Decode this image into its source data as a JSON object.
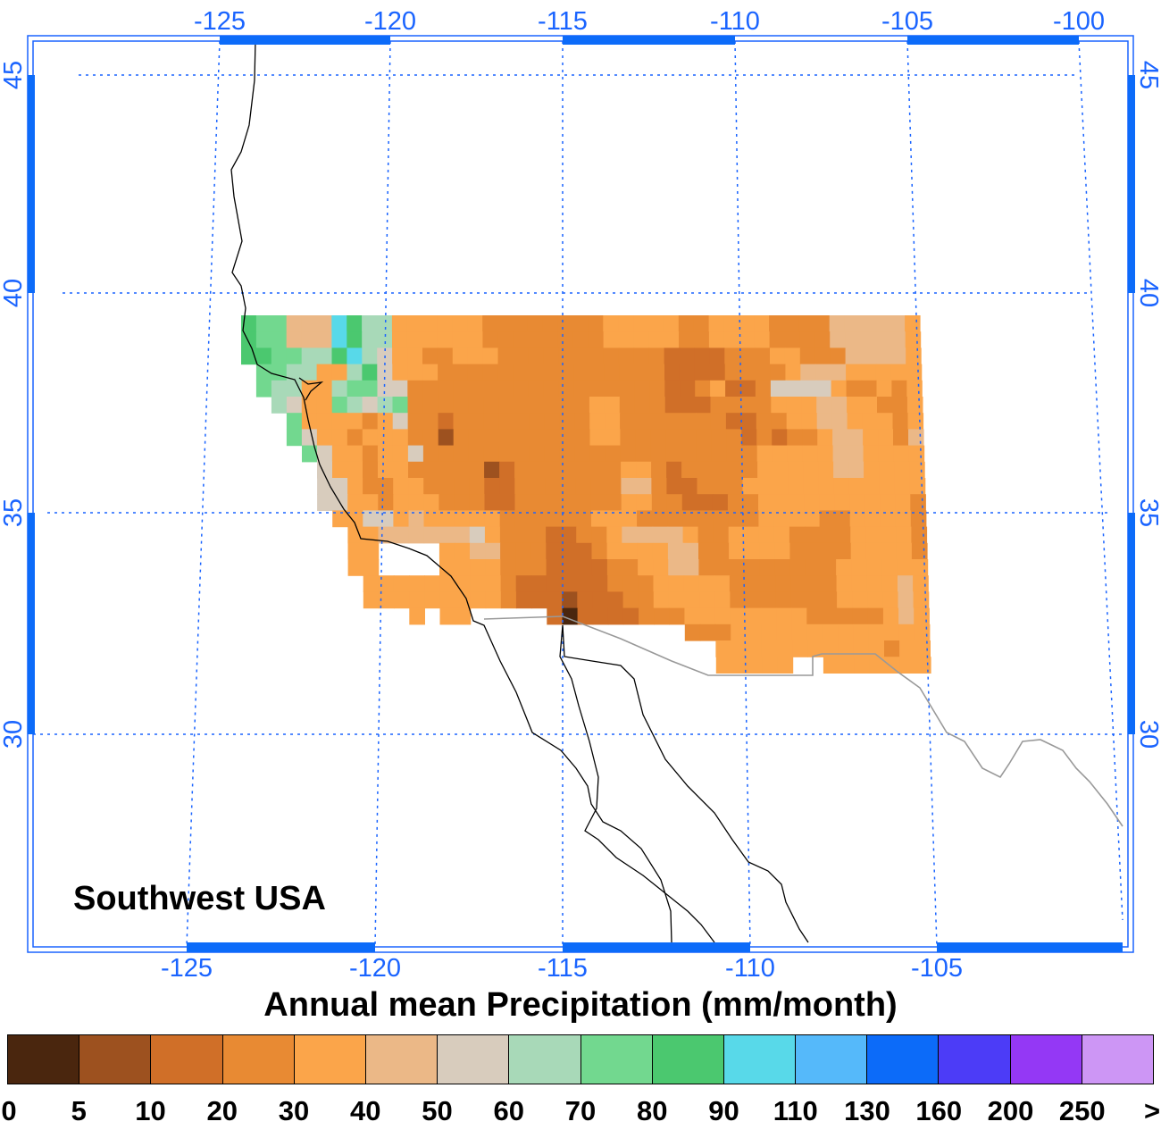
{
  "region_name": "Southwest USA",
  "map_title": "Annual mean Precipitation (mm/month)",
  "grid_color": "#1a64ff",
  "top_lon_labels": [
    "-125",
    "-120",
    "-115",
    "-110",
    "-105",
    "-100"
  ],
  "bottom_lon_labels": [
    "-125",
    "-120",
    "-115",
    "-110",
    "-105"
  ],
  "left_lat_labels": [
    "45",
    "40",
    "35",
    "30"
  ],
  "right_lat_labels": [
    "45",
    "40",
    "35",
    "30"
  ],
  "colorbar": {
    "colors": [
      "#4a260e",
      "#9d511f",
      "#d06f28",
      "#e88a33",
      "#fba54a",
      "#ebb887",
      "#d8ccbd",
      "#a8d9b8",
      "#72d88f",
      "#4bc86f",
      "#58d9e9",
      "#55b9fa",
      "#0c6bf9",
      "#4c3cf7",
      "#9438f5",
      "#cd96f5"
    ],
    "tick_labels": [
      "0",
      "5",
      "10",
      "20",
      "30",
      "40",
      "50",
      "60",
      "70",
      "80",
      "90",
      "110",
      "130",
      "160",
      "200",
      "250",
      ">"
    ]
  },
  "precip_grid": [
    "...........",
    "...........",
    "...........",
    "...........",
    "..........."
  ],
  "cells": [
    [
      "9",
      "8",
      "8",
      "5",
      "5",
      "5",
      "a",
      "9",
      "7",
      "7",
      "4",
      "4",
      "4",
      "4",
      "4",
      "4",
      "3",
      "3",
      "3",
      "3",
      "3",
      "3",
      "3",
      "3",
      "4",
      "4",
      "4",
      "4",
      "4",
      "3",
      "3",
      "4",
      "4",
      "4",
      "4",
      "3",
      "3",
      "3",
      "3",
      "5",
      "5",
      "5",
      "5",
      "5",
      "4"
    ],
    [
      "9",
      "8",
      "8",
      "5",
      "5",
      "5",
      "a",
      "9",
      "7",
      "7",
      "4",
      "4",
      "4",
      "4",
      "4",
      "4",
      "3",
      "3",
      "3",
      "3",
      "3",
      "3",
      "3",
      "3",
      "4",
      "4",
      "4",
      "4",
      "4",
      "3",
      "3",
      "4",
      "4",
      "4",
      "4",
      "3",
      "3",
      "3",
      "3",
      "5",
      "5",
      "5",
      "5",
      "5",
      "4"
    ],
    [
      "9",
      "9",
      "8",
      "8",
      "7",
      "7",
      "9",
      "a",
      "7",
      "6",
      "4",
      "4",
      "3",
      "3",
      "4",
      "4",
      "4",
      "3",
      "3",
      "3",
      "3",
      "3",
      "3",
      "3",
      "3",
      "3",
      "3",
      "3",
      "2",
      "2",
      "2",
      "2",
      "3",
      "3",
      "3",
      "4",
      "4",
      "3",
      "3",
      "3",
      "5",
      "5",
      "5",
      "5",
      "4"
    ],
    [
      "-",
      "8",
      "8",
      "7",
      "7",
      "4",
      "4",
      "7",
      "9",
      "6",
      "4",
      "4",
      "4",
      "3",
      "3",
      "3",
      "3",
      "3",
      "3",
      "3",
      "3",
      "3",
      "3",
      "3",
      "3",
      "3",
      "3",
      "3",
      "2",
      "2",
      "2",
      "2",
      "3",
      "3",
      "3",
      "3",
      "4",
      "5",
      "5",
      "5",
      "4",
      "4",
      "4",
      "4",
      "4"
    ],
    [
      "-",
      "8",
      "7",
      "7",
      "4",
      "4",
      "7",
      "8",
      "8",
      "6",
      "6",
      "3",
      "3",
      "3",
      "3",
      "3",
      "3",
      "3",
      "3",
      "3",
      "3",
      "3",
      "3",
      "3",
      "3",
      "3",
      "3",
      "3",
      "2",
      "2",
      "3",
      "4",
      "2",
      "2",
      "3",
      "6",
      "6",
      "6",
      "6",
      "4",
      "3",
      "3",
      "4",
      "3",
      "4"
    ],
    [
      "-",
      "-",
      "7",
      "6",
      "4",
      "4",
      "8",
      "7",
      "6",
      "7",
      "8",
      "3",
      "3",
      "3",
      "3",
      "3",
      "3",
      "3",
      "3",
      "3",
      "3",
      "3",
      "3",
      "4",
      "4",
      "3",
      "3",
      "3",
      "2",
      "2",
      "2",
      "3",
      "3",
      "3",
      "3",
      "4",
      "4",
      "4",
      "5",
      "5",
      "4",
      "4",
      "3",
      "3",
      "4"
    ],
    [
      "-",
      "-",
      "-",
      "8",
      "4",
      "4",
      "4",
      "4",
      "3",
      "4",
      "6",
      "3",
      "3",
      "2",
      "3",
      "3",
      "3",
      "3",
      "3",
      "3",
      "3",
      "3",
      "3",
      "4",
      "4",
      "3",
      "3",
      "3",
      "3",
      "3",
      "3",
      "3",
      "2",
      "2",
      "3",
      "3",
      "4",
      "4",
      "5",
      "5",
      "4",
      "4",
      "4",
      "3",
      "4"
    ],
    [
      "-",
      "-",
      "-",
      "8",
      "6",
      "4",
      "4",
      "3",
      "4",
      "4",
      "4",
      "3",
      "3",
      "1",
      "3",
      "3",
      "3",
      "3",
      "3",
      "3",
      "3",
      "3",
      "3",
      "4",
      "4",
      "3",
      "3",
      "3",
      "3",
      "3",
      "3",
      "3",
      "3",
      "2",
      "3",
      "2",
      "3",
      "3",
      "4",
      "5",
      "5",
      "4",
      "4",
      "3",
      "5"
    ],
    [
      "-",
      "-",
      "-",
      "-",
      "8",
      "6",
      "4",
      "4",
      "3",
      "4",
      "4",
      "6",
      "3",
      "3",
      "3",
      "3",
      "3",
      "3",
      "3",
      "3",
      "3",
      "3",
      "3",
      "3",
      "3",
      "3",
      "3",
      "3",
      "3",
      "3",
      "3",
      "3",
      "3",
      "3",
      "4",
      "4",
      "4",
      "4",
      "4",
      "5",
      "5",
      "4",
      "4",
      "4",
      "4"
    ],
    [
      "-",
      "-",
      "-",
      "-",
      "-",
      "6",
      "4",
      "4",
      "3",
      "4",
      "4",
      "3",
      "3",
      "3",
      "3",
      "3",
      "1",
      "2",
      "3",
      "3",
      "3",
      "3",
      "3",
      "3",
      "3",
      "4",
      "4",
      "3",
      "2",
      "3",
      "3",
      "3",
      "3",
      "3",
      "4",
      "4",
      "4",
      "4",
      "4",
      "5",
      "5",
      "4",
      "4",
      "4",
      "4"
    ],
    [
      "-",
      "-",
      "-",
      "-",
      "-",
      "6",
      "6",
      "4",
      "3",
      "3",
      "4",
      "4",
      "3",
      "3",
      "3",
      "3",
      "2",
      "2",
      "3",
      "3",
      "3",
      "3",
      "3",
      "3",
      "3",
      "5",
      "5",
      "3",
      "2",
      "2",
      "3",
      "3",
      "3",
      "4",
      "4",
      "4",
      "4",
      "4",
      "4",
      "4",
      "4",
      "4",
      "4",
      "4",
      "4"
    ],
    [
      "-",
      "-",
      "-",
      "-",
      "-",
      "6",
      "6",
      "4",
      "4",
      "3",
      "4",
      "4",
      "4",
      "3",
      "3",
      "3",
      "2",
      "2",
      "3",
      "3",
      "3",
      "3",
      "3",
      "3",
      "3",
      "4",
      "4",
      "3",
      "3",
      "2",
      "2",
      "2",
      "3",
      "3",
      "4",
      "4",
      "4",
      "4",
      "4",
      "4",
      "4",
      "4",
      "4",
      "4",
      "3"
    ],
    [
      "-",
      "-",
      "-",
      "-",
      "-",
      "-",
      "4",
      "4",
      "6",
      "6",
      "4",
      "5",
      "4",
      "4",
      "4",
      "4",
      "4",
      "3",
      "3",
      "3",
      "3",
      "3",
      "3",
      "4",
      "4",
      "4",
      "3",
      "3",
      "3",
      "3",
      "3",
      "3",
      "3",
      "3",
      "4",
      "4",
      "4",
      "4",
      "3",
      "3",
      "4",
      "4",
      "4",
      "4",
      "3"
    ],
    [
      "-",
      "-",
      "-",
      "-",
      "-",
      "-",
      "-",
      "4",
      "4",
      "5",
      "5",
      "5",
      "5",
      "5",
      "5",
      "6",
      "4",
      "3",
      "3",
      "3",
      "2",
      "2",
      "3",
      "3",
      "4",
      "5",
      "5",
      "5",
      "5",
      "4",
      "3",
      "3",
      "4",
      "4",
      "4",
      "4",
      "3",
      "3",
      "3",
      "3",
      "4",
      "4",
      "4",
      "4",
      "3"
    ],
    [
      "-",
      "-",
      "-",
      "-",
      "-",
      "-",
      "-",
      "4",
      "4",
      "-",
      "-",
      "-",
      "-",
      "4",
      "4",
      "5",
      "5",
      "3",
      "3",
      "3",
      "2",
      "2",
      "2",
      "3",
      "4",
      "4",
      "4",
      "4",
      "5",
      "5",
      "3",
      "3",
      "4",
      "4",
      "4",
      "4",
      "3",
      "3",
      "3",
      "3",
      "4",
      "4",
      "4",
      "4",
      "3"
    ],
    [
      "-",
      "-",
      "-",
      "-",
      "-",
      "-",
      "-",
      "4",
      "4",
      "-",
      "-",
      "-",
      "-",
      "4",
      "4",
      "4",
      "4",
      "3",
      "3",
      "3",
      "2",
      "2",
      "2",
      "2",
      "3",
      "3",
      "4",
      "4",
      "5",
      "5",
      "3",
      "3",
      "3",
      "3",
      "3",
      "3",
      "3",
      "3",
      "3",
      "4",
      "4",
      "4",
      "4",
      "4",
      "4"
    ],
    [
      "-",
      "-",
      "-",
      "-",
      "-",
      "-",
      "-",
      "-",
      "4",
      "4",
      "4",
      "4",
      "4",
      "4",
      "4",
      "4",
      "4",
      "3",
      "2",
      "2",
      "2",
      "2",
      "2",
      "2",
      "3",
      "3",
      "3",
      "4",
      "4",
      "4",
      "4",
      "4",
      "3",
      "3",
      "3",
      "3",
      "3",
      "3",
      "3",
      "4",
      "4",
      "4",
      "4",
      "5",
      "4"
    ],
    [
      "-",
      "-",
      "-",
      "-",
      "-",
      "-",
      "-",
      "-",
      "4",
      "4",
      "4",
      "4",
      "4",
      "4",
      "4",
      "4",
      "4",
      "3",
      "2",
      "2",
      "2",
      "1",
      "2",
      "2",
      "2",
      "3",
      "3",
      "4",
      "4",
      "4",
      "4",
      "4",
      "3",
      "3",
      "3",
      "3",
      "3",
      "3",
      "3",
      "4",
      "4",
      "4",
      "4",
      "5",
      "4"
    ],
    [
      "-",
      "-",
      "-",
      "-",
      "-",
      "-",
      "-",
      "-",
      "-",
      "-",
      "-",
      "4",
      "-",
      "4",
      "4",
      "-",
      "-",
      "-",
      "-",
      "-",
      "2",
      "0",
      "2",
      "2",
      "2",
      "2",
      "3",
      "3",
      "3",
      "4",
      "4",
      "4",
      "4",
      "4",
      "4",
      "4",
      "4",
      "3",
      "3",
      "3",
      "3",
      "3",
      "4",
      "5",
      "4"
    ],
    [
      "-",
      "-",
      "-",
      "-",
      "-",
      "-",
      "-",
      "-",
      "-",
      "-",
      "-",
      "-",
      "-",
      "-",
      "-",
      "-",
      "-",
      "-",
      "-",
      "-",
      "-",
      "-",
      "-",
      "-",
      "-",
      "-",
      "-",
      "-",
      "-",
      "3",
      "3",
      "3",
      "4",
      "4",
      "4",
      "4",
      "4",
      "4",
      "4",
      "4",
      "4",
      "4",
      "4",
      "4",
      "4"
    ],
    [
      "-",
      "-",
      "-",
      "-",
      "-",
      "-",
      "-",
      "-",
      "-",
      "-",
      "-",
      "-",
      "-",
      "-",
      "-",
      "-",
      "-",
      "-",
      "-",
      "-",
      "-",
      "-",
      "-",
      "-",
      "-",
      "-",
      "-",
      "-",
      "-",
      "-",
      "-",
      "4",
      "4",
      "4",
      "4",
      "4",
      "4",
      "4",
      "4",
      "4",
      "4",
      "4",
      "3",
      "4",
      "4"
    ],
    [
      "-",
      "-",
      "-",
      "-",
      "-",
      "-",
      "-",
      "-",
      "-",
      "-",
      "-",
      "-",
      "-",
      "-",
      "-",
      "-",
      "-",
      "-",
      "-",
      "-",
      "-",
      "-",
      "-",
      "-",
      "-",
      "-",
      "-",
      "-",
      "-",
      "-",
      "-",
      "4",
      "4",
      "4",
      "4",
      "4",
      "-",
      "-",
      "4",
      "4",
      "4",
      "4",
      "4",
      "4",
      "4"
    ]
  ]
}
